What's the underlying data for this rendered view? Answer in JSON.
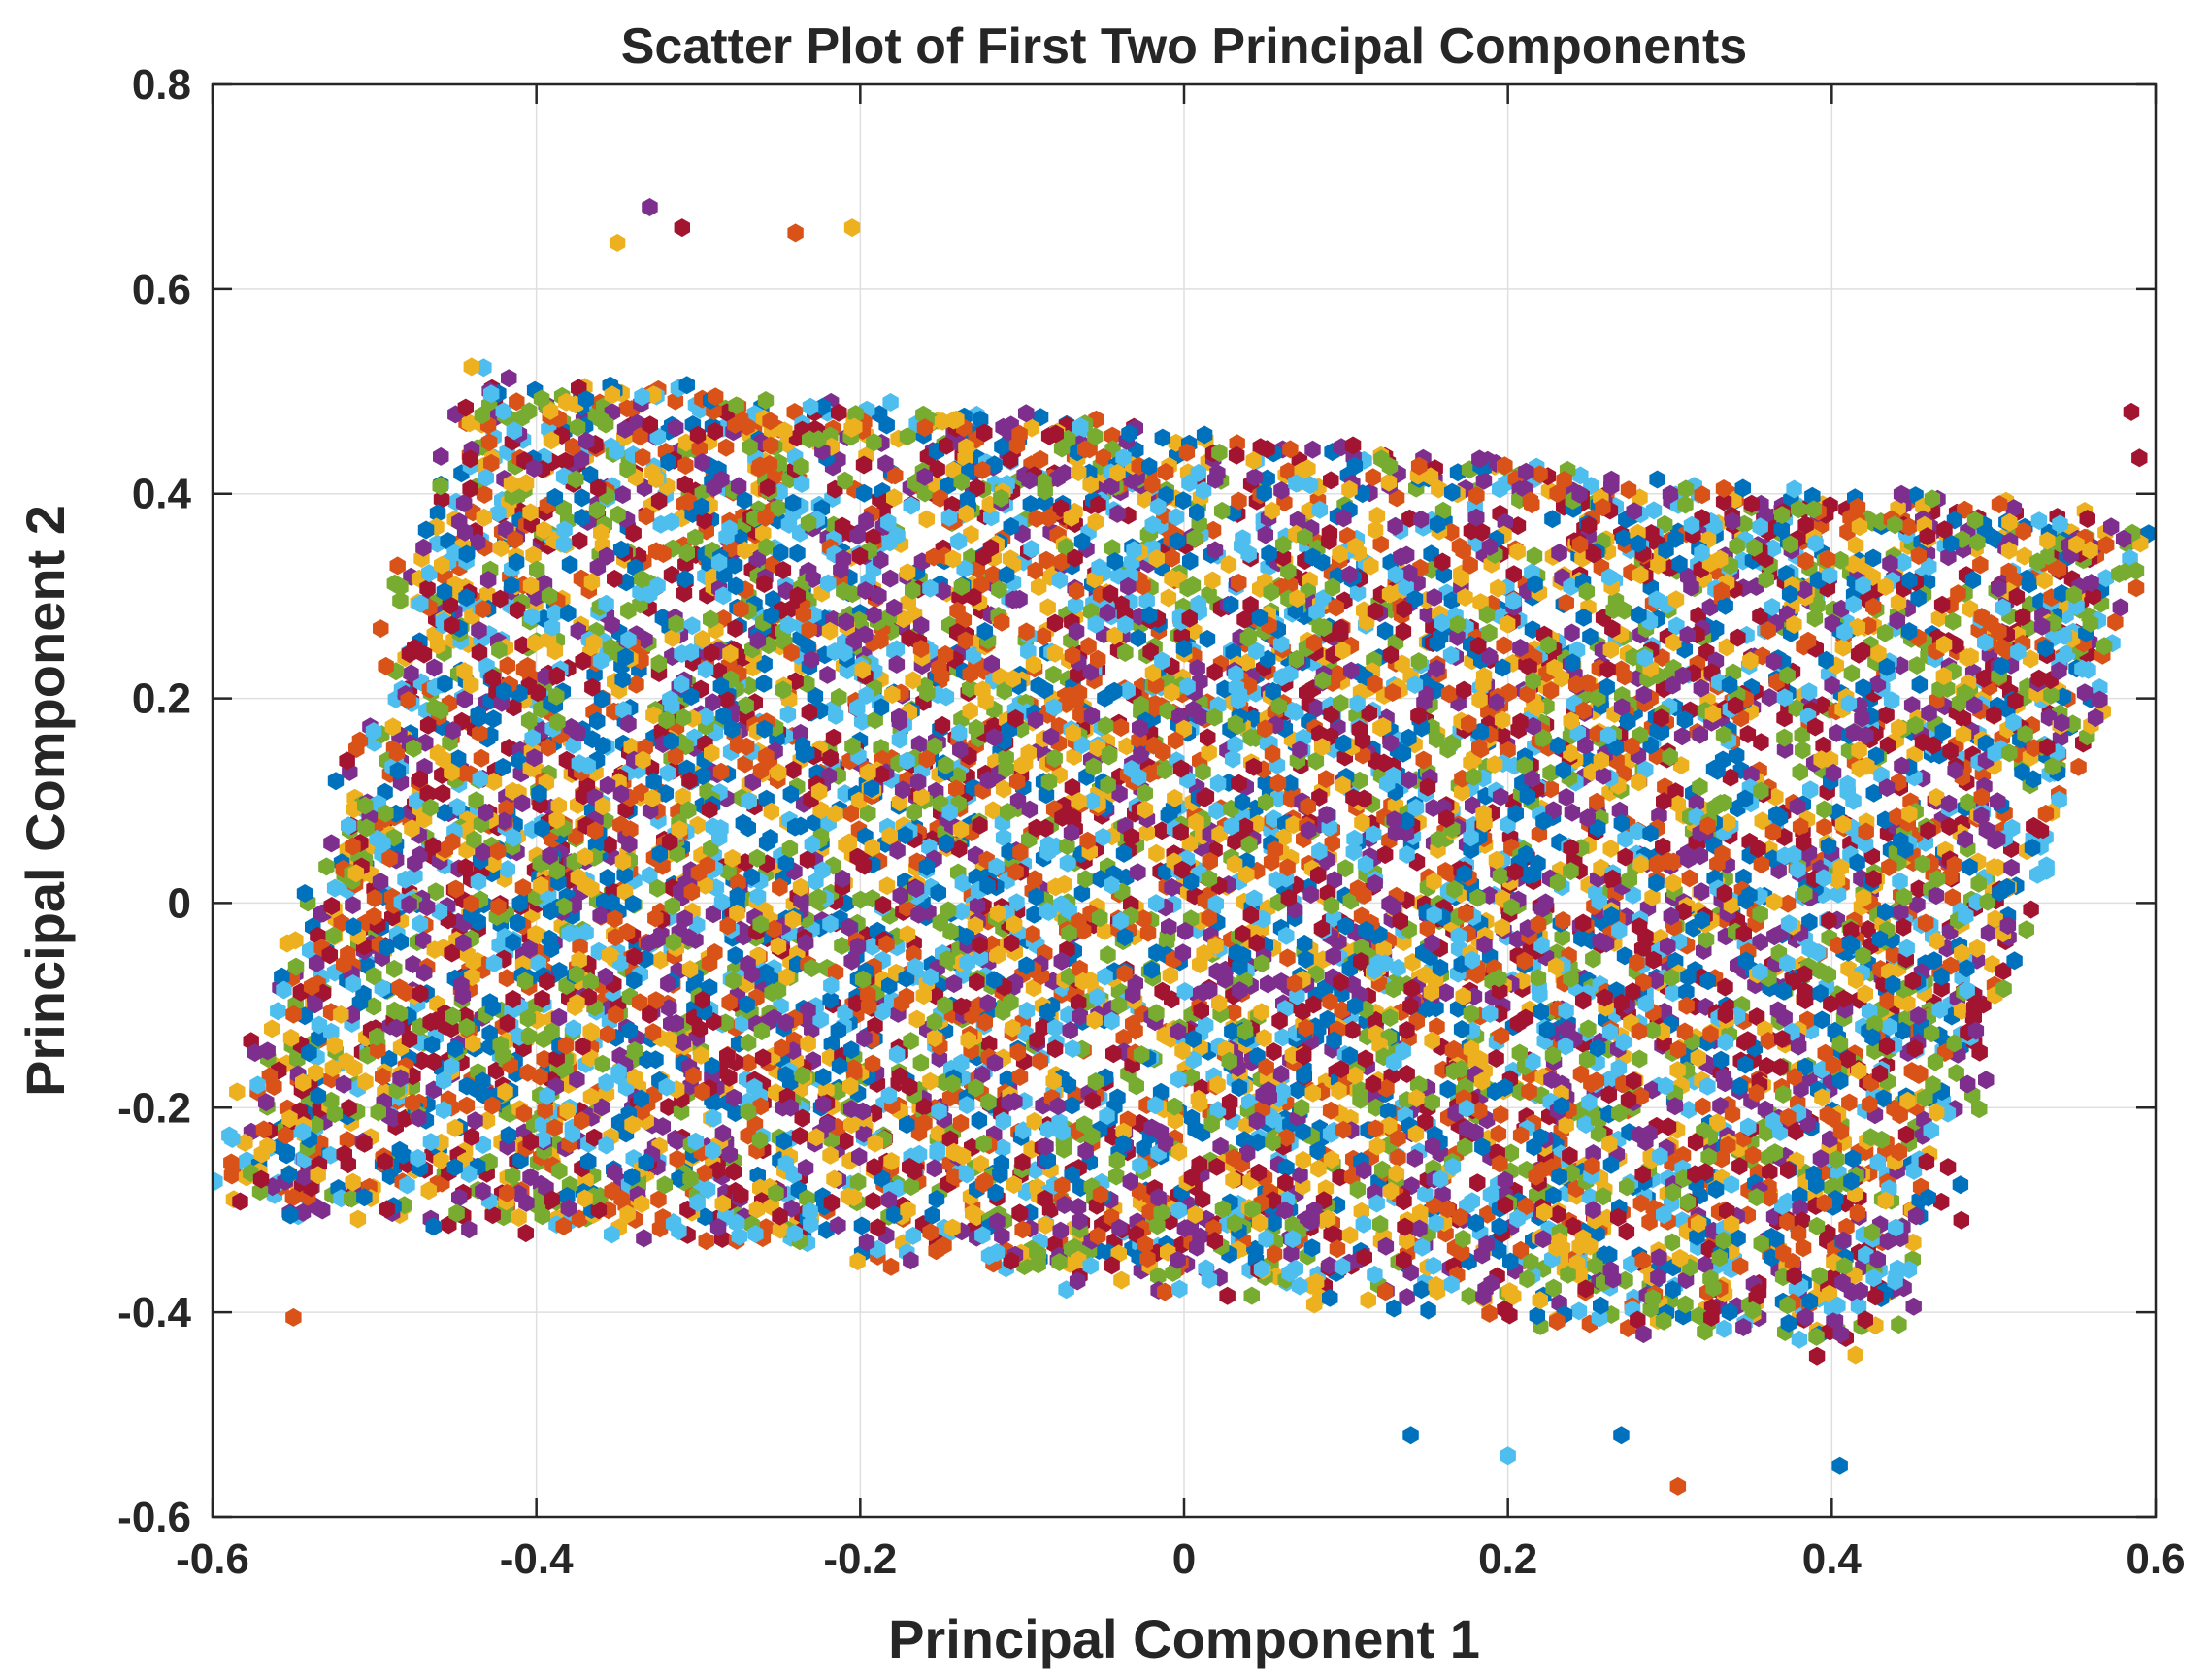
{
  "chart_data": {
    "type": "scatter",
    "title": "Scatter Plot of First Two Principal Components",
    "xlabel": "Principal Component 1",
    "ylabel": "Principal Component 2",
    "xlim": [
      -0.6,
      0.6
    ],
    "ylim": [
      -0.6,
      0.8
    ],
    "xticks": [
      "-0.6",
      "-0.4",
      "-0.2",
      "0",
      "0.2",
      "0.4",
      "0.6"
    ],
    "yticks": [
      "-0.6",
      "-0.4",
      "-0.2",
      "0",
      "0.2",
      "0.4",
      "0.6",
      "0.8"
    ],
    "grid": true,
    "legend": "none",
    "marker": "filled-hexagon",
    "colors": [
      "#0072BD",
      "#D95319",
      "#EDB120",
      "#7E2F8E",
      "#77AC30",
      "#4DBEEE",
      "#A2142F"
    ],
    "point_cloud": {
      "shape": "parallelogram",
      "corners": [
        [
          -0.57,
          -0.28
        ],
        [
          -0.42,
          0.5
        ],
        [
          0.55,
          0.3
        ],
        [
          0.42,
          -0.42
        ]
      ],
      "approx_point_count": 9000
    },
    "points_sample": [
      {
        "x": -0.33,
        "y": 0.68
      },
      {
        "x": -0.31,
        "y": 0.66
      },
      {
        "x": -0.24,
        "y": 0.655
      },
      {
        "x": -0.205,
        "y": 0.66
      },
      {
        "x": -0.35,
        "y": 0.645
      },
      {
        "x": 0.585,
        "y": 0.48
      },
      {
        "x": 0.59,
        "y": 0.435
      },
      {
        "x": 0.305,
        "y": -0.57
      },
      {
        "x": 0.405,
        "y": -0.55
      },
      {
        "x": 0.14,
        "y": -0.52
      },
      {
        "x": -0.55,
        "y": -0.405
      },
      {
        "x": -0.57,
        "y": -0.27
      },
      {
        "x": 0.48,
        "y": -0.31
      },
      {
        "x": 0.2,
        "y": -0.54
      },
      {
        "x": 0.27,
        "y": -0.52
      }
    ]
  }
}
